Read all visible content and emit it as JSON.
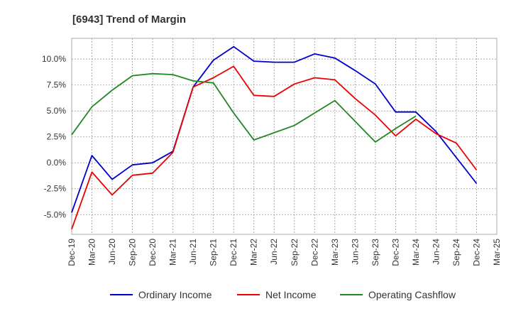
{
  "chart_data": {
    "type": "line",
    "title": "[6943]  Trend of Margin",
    "xlabel": "",
    "ylabel": "",
    "categories": [
      "Dec-19",
      "Mar-20",
      "Jun-20",
      "Sep-20",
      "Dec-20",
      "Mar-21",
      "Jun-21",
      "Sep-21",
      "Dec-21",
      "Mar-22",
      "Jun-22",
      "Sep-22",
      "Dec-22",
      "Mar-23",
      "Jun-23",
      "Sep-23",
      "Dec-23",
      "Mar-24",
      "Jun-24",
      "Sep-24",
      "Dec-24",
      "Mar-25"
    ],
    "y_ticks": [
      10.0,
      7.5,
      5.0,
      2.5,
      0.0,
      -2.5,
      -5.0
    ],
    "y_tick_labels": [
      "10.0%",
      "7.5%",
      "5.0%",
      "2.5%",
      "0.0%",
      "-2.5%",
      "-5.0%"
    ],
    "ylim": [
      -6.9,
      12.0
    ],
    "grid": true,
    "legend_position": "bottom",
    "series": [
      {
        "name": "Ordinary Income",
        "color": "#0000cc",
        "values": [
          -4.8,
          0.7,
          -1.6,
          -0.2,
          0.0,
          1.1,
          7.3,
          9.9,
          11.2,
          9.8,
          9.7,
          9.7,
          10.5,
          10.1,
          8.9,
          7.6,
          4.9,
          4.9,
          3.0,
          0.5,
          -2.0,
          null
        ]
      },
      {
        "name": "Net Income",
        "color": "#ee0000",
        "values": [
          -6.4,
          -0.9,
          -3.1,
          -1.2,
          -1.0,
          1.0,
          7.3,
          8.2,
          9.3,
          6.5,
          6.4,
          7.6,
          8.2,
          8.0,
          6.2,
          4.6,
          2.6,
          4.2,
          2.8,
          1.9,
          -0.7,
          null
        ]
      },
      {
        "name": "Operating Cashflow",
        "color": "#228822",
        "values": [
          2.7,
          5.4,
          7.0,
          8.4,
          8.6,
          8.5,
          7.9,
          7.7,
          4.8,
          2.2,
          2.9,
          3.6,
          4.8,
          6.0,
          4.0,
          2.0,
          3.3,
          4.5,
          null,
          null,
          null,
          null
        ]
      }
    ]
  }
}
